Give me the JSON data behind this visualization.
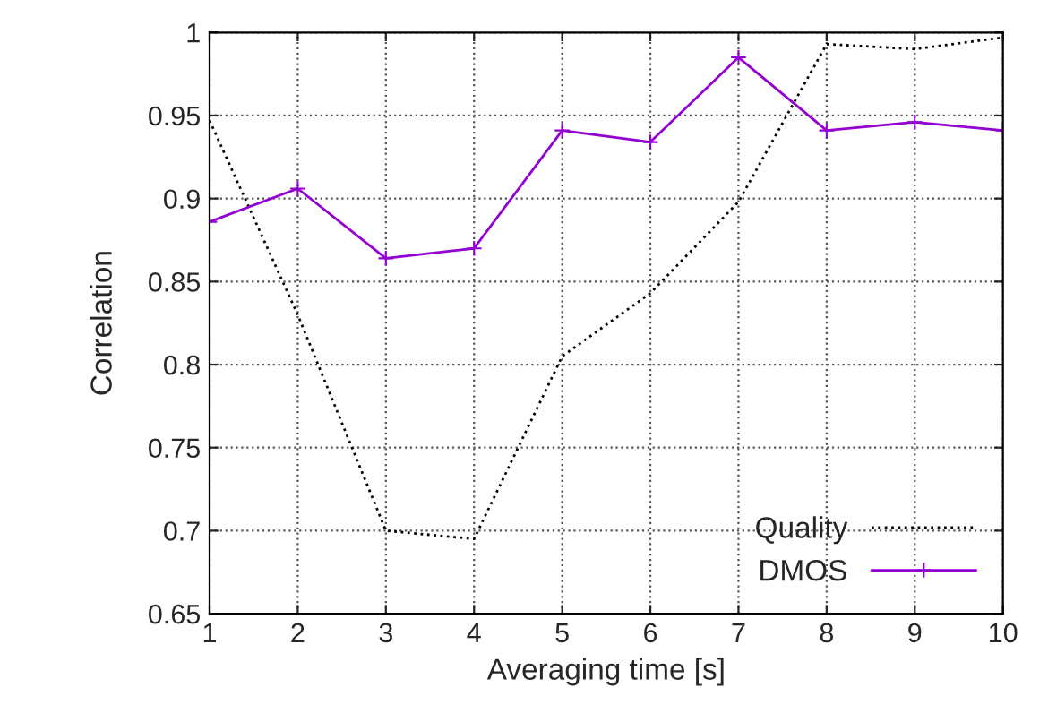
{
  "chart_data": {
    "type": "line",
    "xlabel": "Averaging time [s]",
    "ylabel": "Correlation",
    "x": [
      1,
      2,
      3,
      4,
      5,
      6,
      7,
      8,
      9,
      10
    ],
    "series": [
      {
        "name": "Quality",
        "color": "#000000",
        "line_style": "dotted",
        "marker": "none",
        "values": [
          0.947,
          0.83,
          0.7,
          0.695,
          0.805,
          0.843,
          0.898,
          0.993,
          0.99,
          0.997
        ]
      },
      {
        "name": "DMOS",
        "color": "#9400d3",
        "line_style": "solid",
        "marker": "cross",
        "values": [
          0.886,
          0.906,
          0.864,
          0.87,
          0.941,
          0.934,
          0.985,
          0.941,
          0.946,
          0.941
        ]
      }
    ],
    "xlim": [
      1,
      10
    ],
    "xticks": [
      1,
      2,
      3,
      4,
      5,
      6,
      7,
      8,
      9,
      10
    ],
    "ylim": [
      0.65,
      1
    ],
    "yticks": [
      0.65,
      0.7,
      0.75,
      0.8,
      0.85,
      0.9,
      0.95,
      {
        "value": 1,
        "label": "1"
      }
    ],
    "grid": true,
    "legend": "lower right"
  }
}
